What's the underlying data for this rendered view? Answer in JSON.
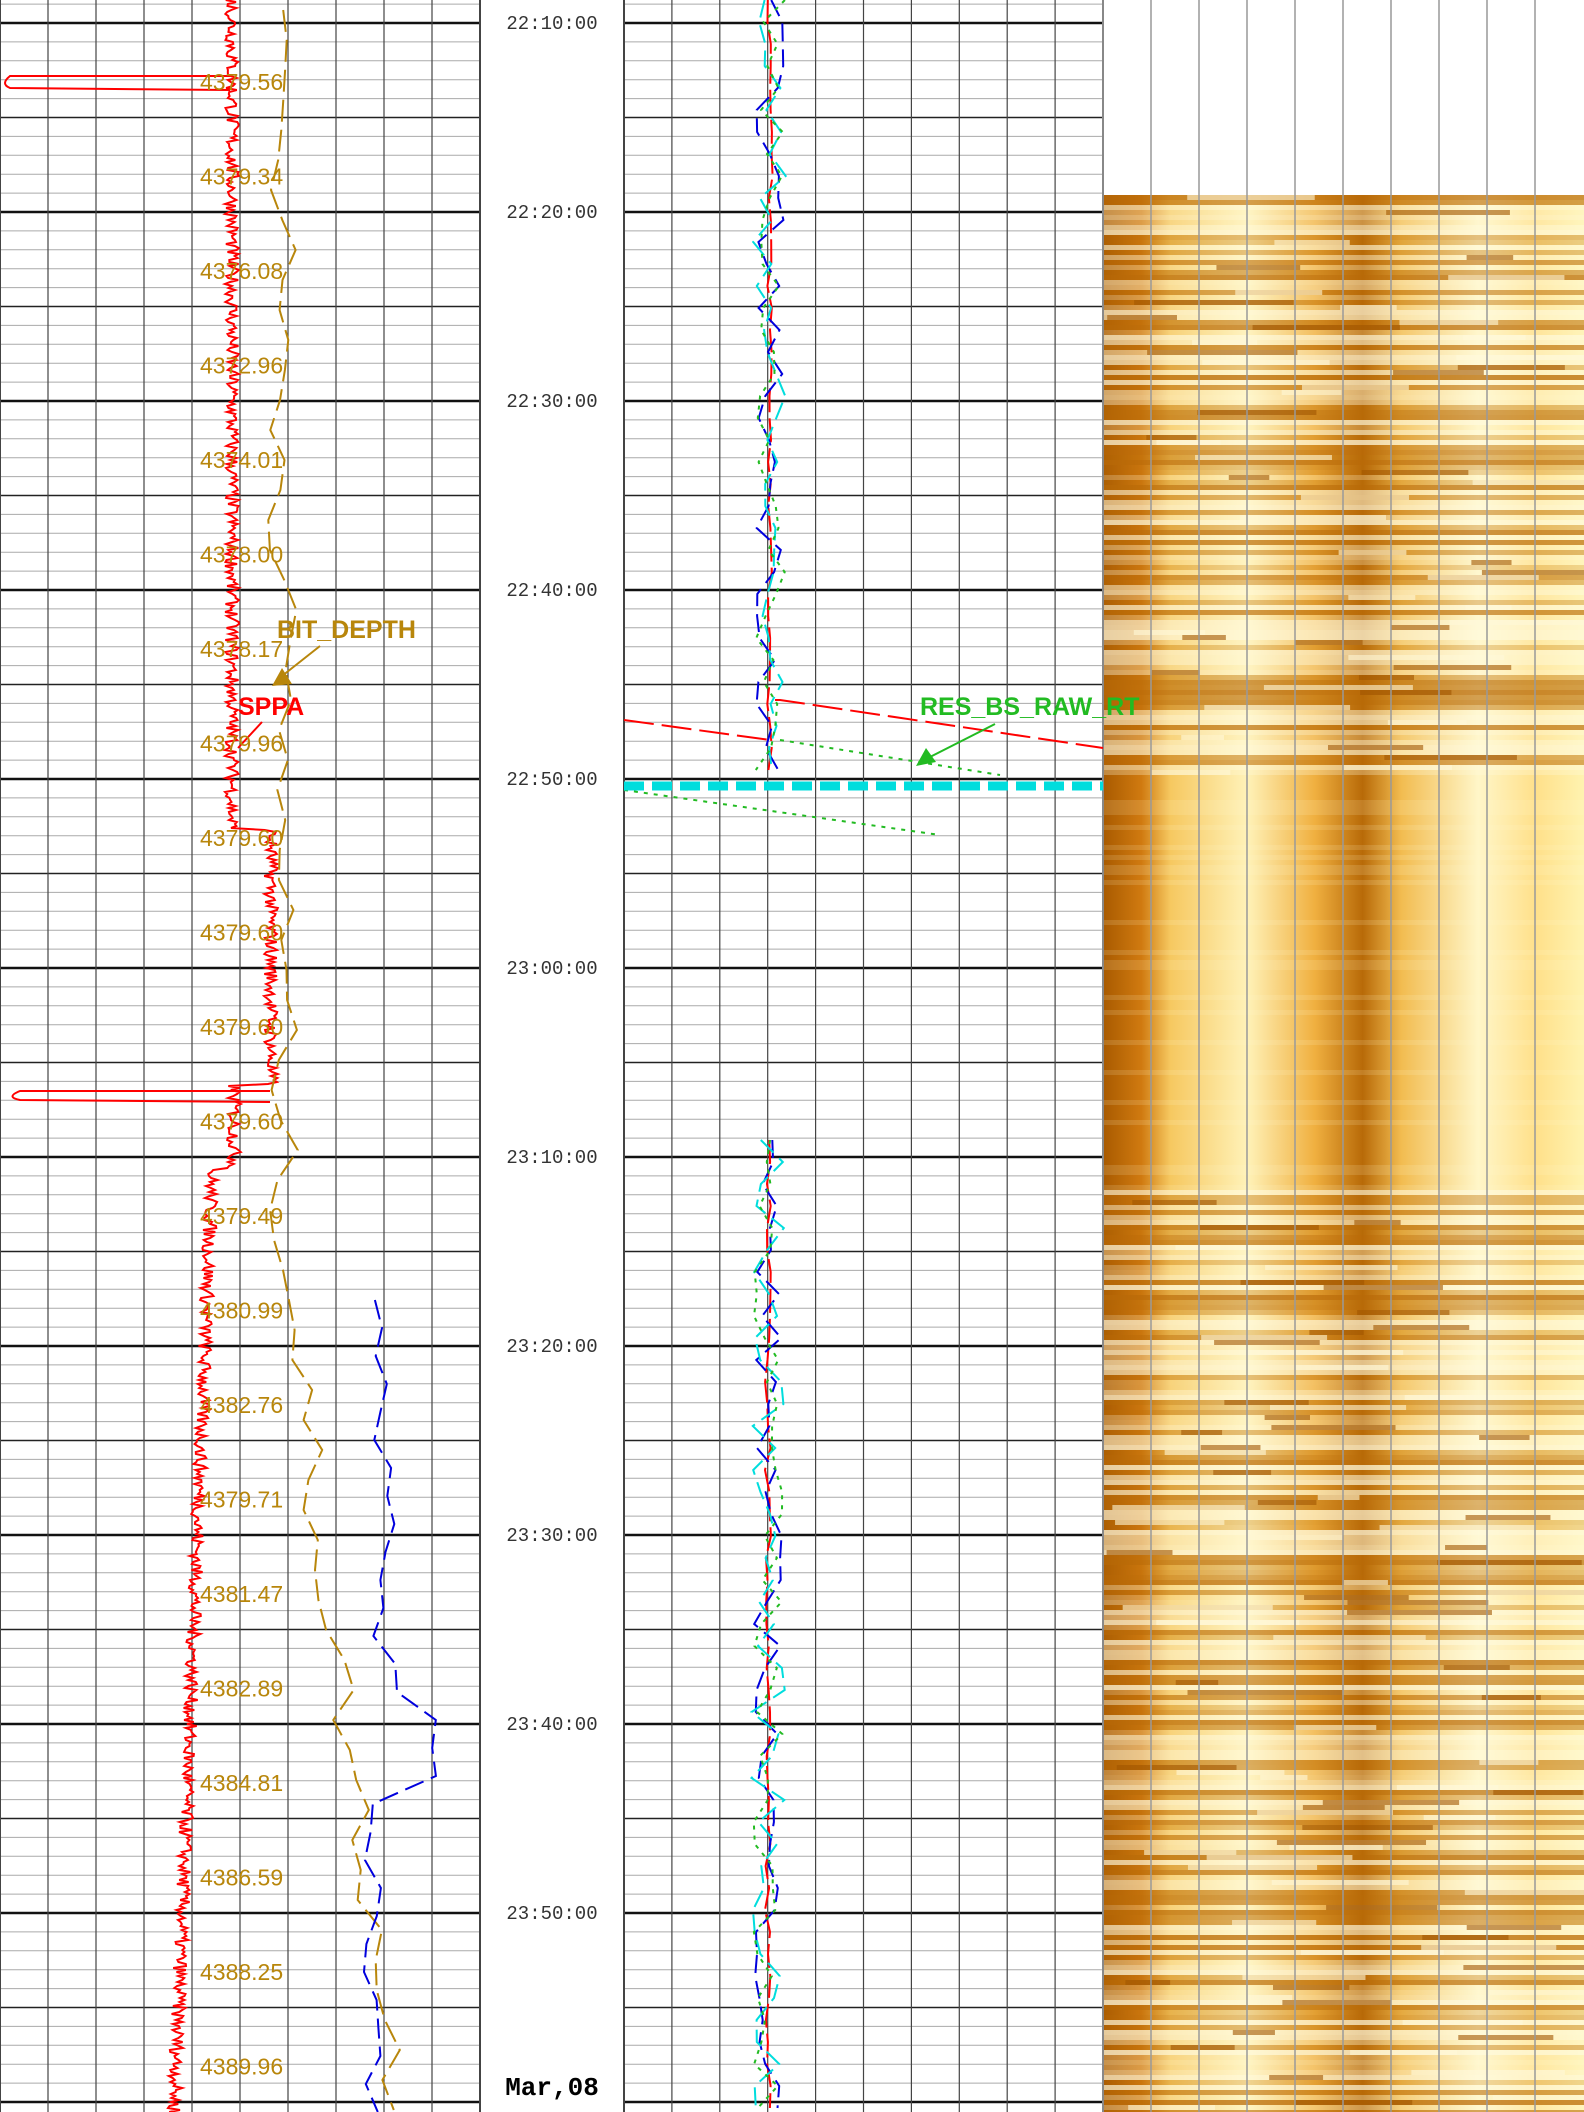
{
  "time_labels": [
    "22:10:00",
    "22:20:00",
    "22:30:00",
    "22:40:00",
    "22:50:00",
    "23:00:00",
    "23:10:00",
    "23:20:00",
    "23:30:00",
    "23:40:00",
    "23:50:00"
  ],
  "depth_labels": [
    "4379.56",
    "4379.34",
    "4376.08",
    "4372.96",
    "4374.01",
    "4378.00",
    "4378.17",
    "4379.96",
    "4379.60",
    "4379.60",
    "4379.60",
    "4379.60",
    "4379.49",
    "4380.99",
    "4382.76",
    "4379.71",
    "4381.47",
    "4382.89",
    "4384.81",
    "4386.59",
    "4388.25",
    "4389.96"
  ],
  "curve_labels": {
    "bit_depth": "BIT_DEPTH",
    "sppa": "SPPA",
    "res": "RES_BS_RAW_RT"
  },
  "date_label": "Mar,08"
}
